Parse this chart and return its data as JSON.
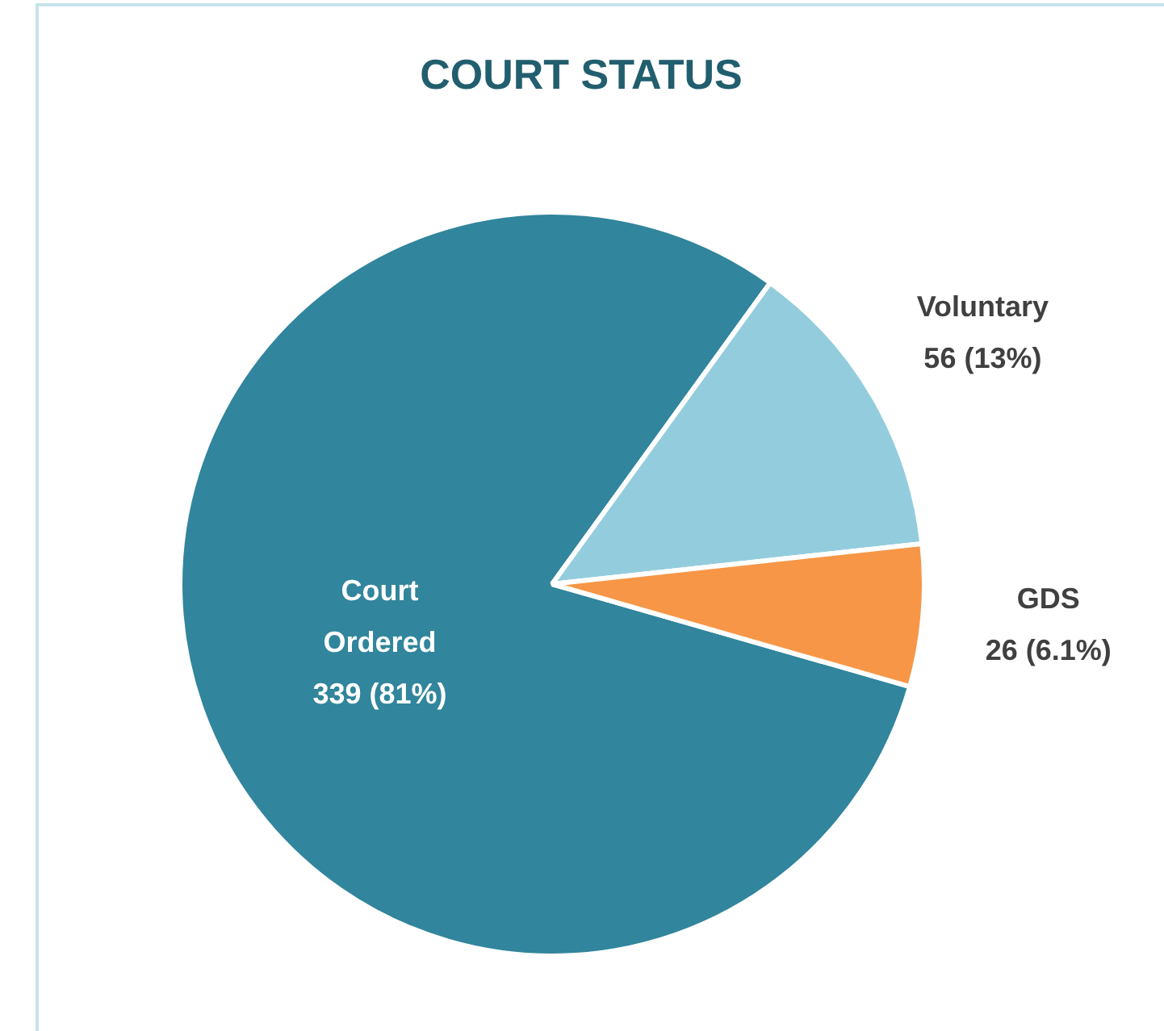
{
  "chart_data": {
    "type": "pie",
    "title": "COURT STATUS",
    "categories": [
      "Court Ordered",
      "Voluntary",
      "GDS"
    ],
    "values": [
      339,
      56,
      26
    ],
    "value_labels": [
      "339 (81%)",
      "56 (13%)",
      "26 (6.1%)"
    ],
    "colors": [
      "#31859c",
      "#93cddd",
      "#f79646"
    ]
  }
}
